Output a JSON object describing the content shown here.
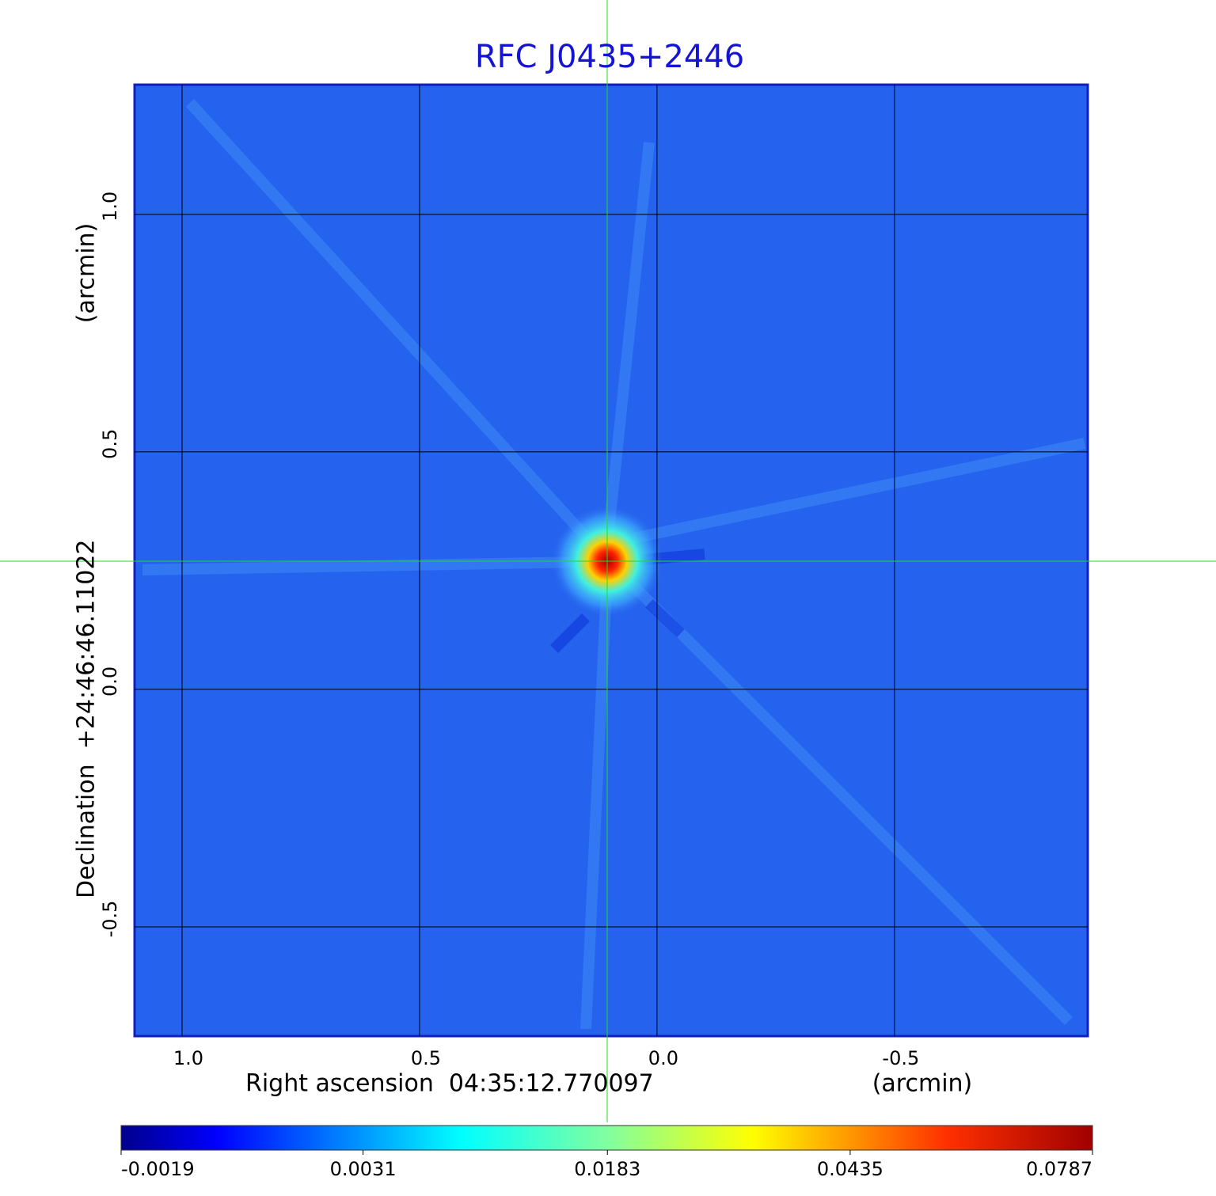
{
  "chart_data": {
    "type": "image",
    "title": "RFC J0435+2446",
    "x_label": "Right ascension  04:35:12.770097",
    "x_unit": "(arcmin)",
    "y_label": "Declination  +24:46:46.11022",
    "y_unit": "(arcmin)",
    "xlim": [
      1.1,
      -0.907
    ],
    "ylim": [
      -0.73,
      1.273
    ],
    "xticks": [
      {
        "value": 1,
        "label": "1.0"
      },
      0.5,
      {
        "value": 0,
        "label": "0.0"
      },
      -0.5
    ],
    "yticks": [
      -0.5,
      {
        "value": 0,
        "label": "0.0"
      },
      0.5,
      {
        "value": 1,
        "label": "1.0"
      }
    ],
    "grid": true,
    "colorbar": {
      "scale": "sqrt",
      "clim": [
        -0.0019,
        0.0787
      ],
      "ticks": [
        -0.0019,
        0.0031,
        0.0183,
        0.0435,
        0.0787
      ]
    }
  }
}
